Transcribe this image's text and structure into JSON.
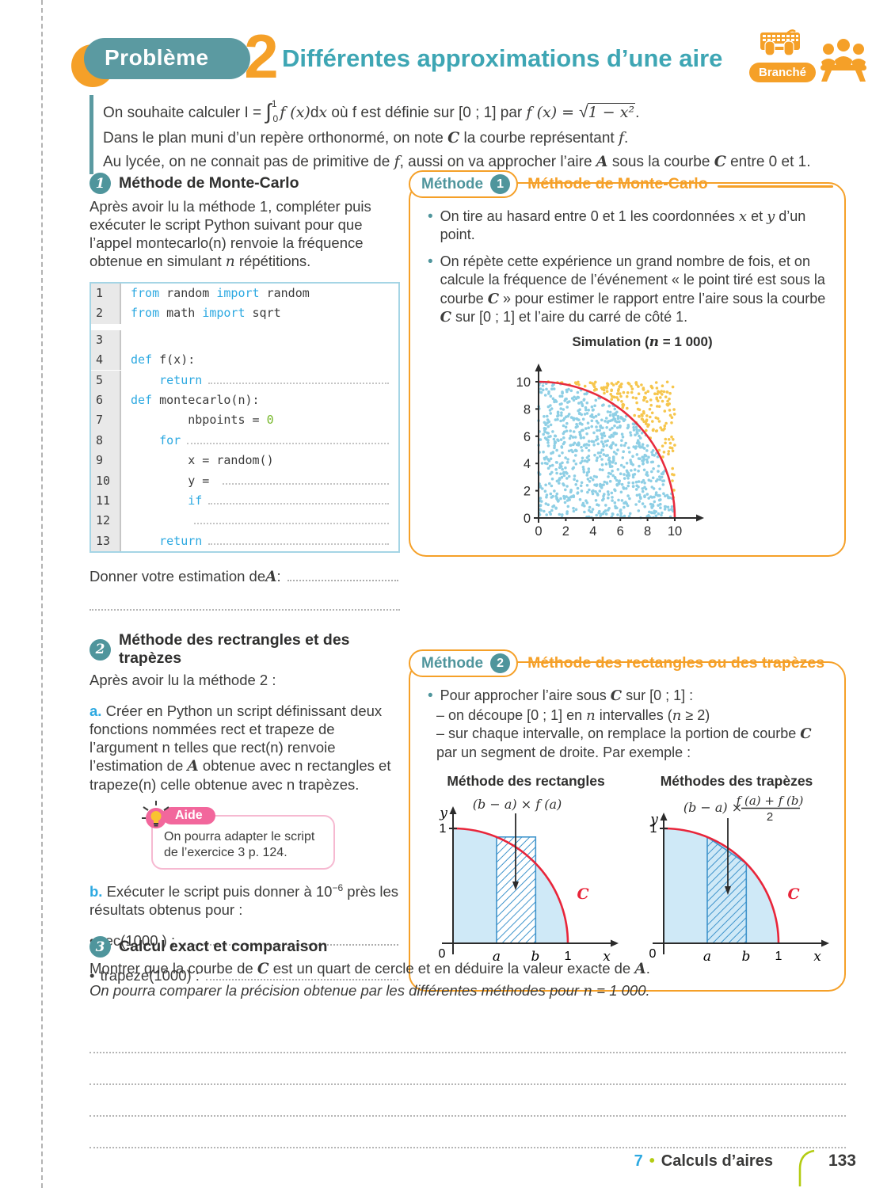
{
  "header": {
    "problem_label": "Problème",
    "problem_number": "2",
    "title": "Différentes approximations d’une aire",
    "branche_label": "Branché"
  },
  "intro": {
    "line1": [
      {
        "t": "On souhaite calculer I = "
      },
      {
        "t": "∫",
        "s": "int"
      },
      {
        "t": "1",
        "s": "isup"
      },
      {
        "t": "0",
        "s": "isub"
      },
      {
        "t": "f (x)",
        "s": "mi"
      },
      {
        "t": "d"
      },
      {
        "t": "x",
        "s": "mi"
      },
      {
        "t": " où f est définie sur [0 ; 1] par "
      },
      {
        "t": "f (x) = ",
        "s": "mi"
      },
      {
        "t": "√",
        "s": "sqrt"
      },
      {
        "t": "1 − x²",
        "s": "ovl"
      },
      {
        "t": "."
      }
    ],
    "line2": [
      {
        "t": "Dans le plan muni d’un repère orthonormé, on note "
      },
      {
        "t": "C",
        "s": "scr"
      },
      {
        "t": " la courbe représentant "
      },
      {
        "t": "f",
        "s": "mi"
      },
      {
        "t": "."
      }
    ],
    "line3": [
      {
        "t": "Au lycée, on ne connait pas de primitive de "
      },
      {
        "t": "f",
        "s": "mi"
      },
      {
        "t": ", aussi on va approcher l’aire "
      },
      {
        "t": "A",
        "s": "scr"
      },
      {
        "t": " sous la courbe "
      },
      {
        "t": "C",
        "s": "scr"
      },
      {
        "t": " entre 0 et 1."
      }
    ]
  },
  "section1": {
    "num": "1",
    "title": "Méthode de Monte-Carlo",
    "body": [
      {
        "t": "Après avoir lu la méthode 1, compléter puis exécuter le script Python suivant pour que l’appel montecarlo(n) renvoie la fréquence obtenue en simulant "
      },
      {
        "t": "n",
        "s": "mi"
      },
      {
        "t": " répétitions."
      }
    ]
  },
  "code": {
    "lines": [
      {
        "num": "1",
        "segments": [
          {
            "t": "from",
            "s": "kw"
          },
          {
            "t": " random "
          },
          {
            "t": "import",
            "s": "kw"
          },
          {
            "t": " random"
          }
        ]
      },
      {
        "num": "2",
        "segments": [
          {
            "t": "from",
            "s": "kw"
          },
          {
            "t": " math "
          },
          {
            "t": "import",
            "s": "kw"
          },
          {
            "t": " sqrt"
          }
        ]
      },
      {
        "num": "3",
        "segments": []
      },
      {
        "num": "4",
        "segments": [
          {
            "t": "def",
            "s": "kw"
          },
          {
            "t": " f(x):"
          }
        ]
      },
      {
        "num": "5",
        "segments": [
          {
            "t": "    "
          },
          {
            "t": "return",
            "s": "kw"
          },
          {
            "s": "fill"
          }
        ]
      },
      {
        "num": "6",
        "segments": [
          {
            "t": "def",
            "s": "kw"
          },
          {
            "t": " montecarlo(n):"
          }
        ]
      },
      {
        "num": "7",
        "segments": [
          {
            "t": "        nbpoints = "
          },
          {
            "t": "0",
            "s": "num0"
          }
        ]
      },
      {
        "num": "8",
        "segments": [
          {
            "t": "    "
          },
          {
            "t": "for",
            "s": "kw"
          },
          {
            "s": "fill"
          }
        ]
      },
      {
        "num": "9",
        "segments": [
          {
            "t": "        x = random()"
          }
        ]
      },
      {
        "num": "10",
        "segments": [
          {
            "t": "        y = "
          },
          {
            "s": "fill"
          }
        ]
      },
      {
        "num": "11",
        "segments": [
          {
            "t": "        "
          },
          {
            "t": "if",
            "s": "kw"
          },
          {
            "s": "fill"
          }
        ]
      },
      {
        "num": "12",
        "segments": [
          {
            "t": "        "
          },
          {
            "s": "fill"
          }
        ]
      },
      {
        "num": "13",
        "segments": [
          {
            "t": "    "
          },
          {
            "t": "return",
            "s": "kw"
          },
          {
            "s": "fill"
          }
        ]
      }
    ]
  },
  "estimation_line": [
    {
      "t": "Donner votre estimation de "
    },
    {
      "t": "A",
      "s": "scr"
    },
    {
      "t": " : "
    },
    {
      "s": "fill"
    }
  ],
  "section2": {
    "num": "2",
    "title": "Méthode des rectrangles et des trapèzes",
    "intro": "Après avoir lu la méthode 2 :",
    "a_label": "a.",
    "a_body": [
      {
        "t": " Créer en Python un script définissant deux fonctions nommées rect et trapeze de l’argument n telles que rect(n) renvoie l’estimation de "
      },
      {
        "t": "A",
        "s": "scr"
      },
      {
        "t": " obtenue avec n rectangles et trapeze(n) celle obtenue avec n trapèzes."
      }
    ],
    "aide": {
      "label": "Aide",
      "text": "On pourra adapter le script de l’exercice 3 p. 124."
    },
    "b_label": "b.",
    "b_body": [
      {
        "t": " Exécuter le script puis donner à 10"
      },
      {
        "t": "−6",
        "s": "sup"
      },
      {
        "t": " près les résultats obtenus pour :"
      }
    ],
    "rec_item": [
      {
        "t": "rec(1000 ) : "
      },
      {
        "s": "fill"
      }
    ],
    "trapeze_item": [
      {
        "t": "trapeze(1000) : "
      },
      {
        "s": "fill"
      }
    ]
  },
  "methode1": {
    "tab_label": "Méthode",
    "tab_num": "1",
    "title": "Méthode de Monte-Carlo",
    "bullet1": [
      {
        "t": "On tire au hasard entre 0 et 1 les coordonnées "
      },
      {
        "t": "x",
        "s": "mi"
      },
      {
        "t": " et "
      },
      {
        "t": "y",
        "s": "mi"
      },
      {
        "t": " d’un point."
      }
    ],
    "bullet2": [
      {
        "t": "On répète cette expérience un grand nombre de fois, et on calcule la fréquence de l’événement « le point tiré est sous la courbe "
      },
      {
        "t": "C",
        "s": "scr"
      },
      {
        "t": " » pour estimer le rapport entre l’aire sous la courbe "
      },
      {
        "t": "C",
        "s": "scr"
      },
      {
        "t": " sur [0 ; 1] et l’aire du carré de côté 1."
      }
    ]
  },
  "methode2": {
    "tab_label": "Méthode",
    "tab_num": "2",
    "title": "Méthode des rectangles ou des trapèzes",
    "bullet": [
      {
        "t": "Pour approcher l’aire sous "
      },
      {
        "t": "C",
        "s": "scr"
      },
      {
        "t": " sur [0 ; 1] :"
      }
    ],
    "dash1": [
      {
        "t": "– on découpe [0 ; 1] en "
      },
      {
        "t": "n",
        "s": "mi"
      },
      {
        "t": " intervalles ("
      },
      {
        "t": "n",
        "s": "mi"
      },
      {
        "t": " ≥ 2)"
      }
    ],
    "dash2": [
      {
        "t": "– sur chaque intervalle, on remplace la portion de courbe "
      },
      {
        "t": "C",
        "s": "scr"
      },
      {
        "t": " par un segment de droite. Par exemple :"
      }
    ],
    "rect_head": "Méthode des rectangles",
    "trap_head": "Méthodes des trapèzes",
    "rect_formula": "(b − a) × f (a)",
    "trap_formula_prefix": "(b − a) ×",
    "trap_frac_num": "f (a) + f (b)",
    "trap_frac_den": "2",
    "axis_y": "y",
    "axis_x": "x",
    "axis_one": "1",
    "axis_zero": "0",
    "axis_a": "a",
    "axis_b": "b",
    "curve_label": "C"
  },
  "section3": {
    "num": "3",
    "title": "Calcul exact et comparaison",
    "line1": [
      {
        "t": "Montrer que la courbe de "
      },
      {
        "t": "C",
        "s": "scr"
      },
      {
        "t": " est un quart de cercle et en déduire la valeur exacte de "
      },
      {
        "t": "A",
        "s": "scr"
      },
      {
        "t": "."
      }
    ],
    "line2": [
      {
        "t": "On pourra comparer la précision obtenue par les différentes méthodes pour ",
        "s": "it"
      },
      {
        "t": "n",
        "s": "mi"
      },
      {
        "t": " = 1 000.",
        "s": "it"
      }
    ],
    "answer_line_count": 4
  },
  "footer": {
    "chapter_num": "7",
    "separator": "•",
    "chapter_title": "Calculs d’aires",
    "page_num": "133"
  },
  "chart_data": [
    {
      "type": "scatter",
      "title_segments": [
        {
          "t": "Simulation ("
        },
        {
          "t": "n",
          "s": "mi"
        },
        {
          "t": " = 1 000)"
        }
      ],
      "n_points": 1000,
      "seed": 7,
      "x_range": [
        0,
        10
      ],
      "y_range": [
        0,
        10
      ],
      "x_ticks": [
        0,
        2,
        4,
        6,
        8,
        10
      ],
      "y_ticks": [
        0,
        2,
        4,
        6,
        8,
        10
      ],
      "curve": "quarter circle of radius 10 centered at origin",
      "curve_color": "#e82b3d",
      "inside_color": "#8ecfe5",
      "outside_color": "#f6c64d",
      "rule": "point (x,y) drawn blue when x²+y² ≤ 100 (under curve), orange otherwise"
    },
    {
      "type": "area",
      "name": "rectangle-method-diagram",
      "description": "quarter circle y=√(1−x²) on [0;1], shaded under curve, hatched rectangle of width b−a and height f(a)",
      "a": 0.38,
      "b": 0.72,
      "f_a": 0.925,
      "annotation": "(b − a) × f (a)"
    },
    {
      "type": "area",
      "name": "trapezoid-method-diagram",
      "description": "quarter circle y=√(1−x²) on [0;1], shaded under curve, hatched trapezoid between a and b with heights f(a) and f(b)",
      "a": 0.38,
      "b": 0.72,
      "f_a": 0.925,
      "f_b": 0.694,
      "annotation": "(b − a) × (f (a) + f (b)) / 2"
    }
  ]
}
